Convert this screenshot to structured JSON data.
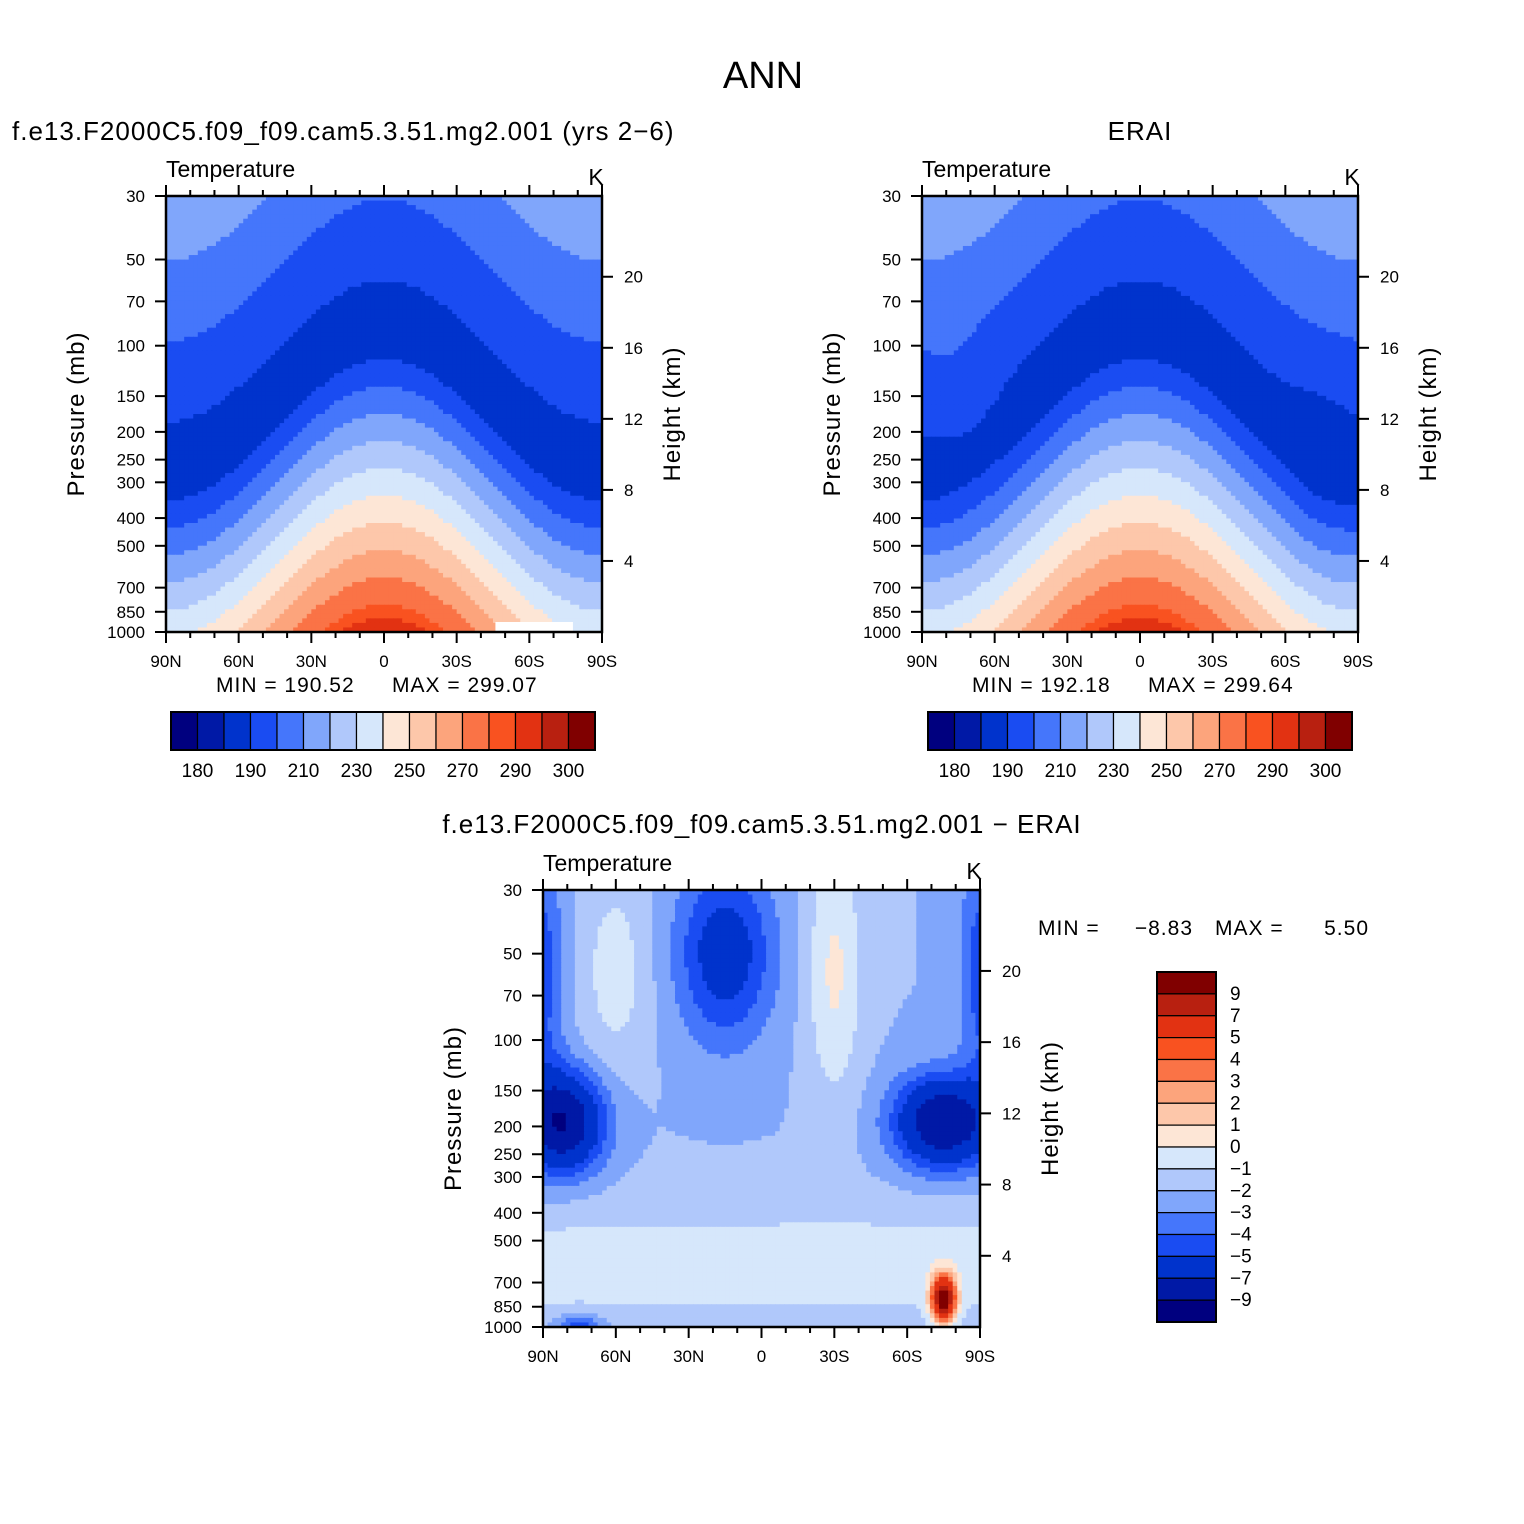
{
  "figure": {
    "title": "ANN",
    "colors": {
      "abs_levels": [
        "#00007f",
        "#0019a6",
        "#0033cc",
        "#1a4cf2",
        "#4576fb",
        "#80a6fb",
        "#b0c8fb",
        "#d6e7fb",
        "#fde6d6",
        "#fdc7aa",
        "#fca47c",
        "#fa7346",
        "#f95220",
        "#e23212",
        "#b82010",
        "#800000"
      ],
      "diff_levels": [
        "#00007f",
        "#0019a6",
        "#0033cc",
        "#1a4cf2",
        "#4576fb",
        "#80a6fb",
        "#b0c8fb",
        "#d6e7fb",
        "#fde6d6",
        "#fdc7aa",
        "#fca47c",
        "#fa7346",
        "#f95220",
        "#e23212",
        "#b82010",
        "#800000"
      ]
    }
  },
  "chart_data": [
    {
      "type": "heatmap",
      "panel": "model",
      "title": "f.e13.F2000C5.f09_f09.cam5.3.51.mg2.001 (yrs 2−6)",
      "variable": "Temperature",
      "units": "K",
      "xlabel": "",
      "ylabel": "Pressure (mb)",
      "ylabel_right": "Height (km)",
      "x_ticks": [
        "90N",
        "60N",
        "30N",
        "0",
        "30S",
        "60S",
        "90S"
      ],
      "y_ticks": [
        "30",
        "50",
        "70",
        "100",
        "150",
        "200",
        "250",
        "300",
        "400",
        "500",
        "700",
        "850",
        "1000"
      ],
      "y_ticks_right": [
        "20",
        "16",
        "12",
        "8",
        "4"
      ],
      "min_label": "MIN = 190.52",
      "max_label": "MAX = 299.07",
      "min": 190.52,
      "max": 299.07,
      "colorbar_labels": [
        "180",
        "190",
        "210",
        "230",
        "250",
        "270",
        "290",
        "300"
      ]
    },
    {
      "type": "heatmap",
      "panel": "obs",
      "title": "ERAI",
      "variable": "Temperature",
      "units": "K",
      "xlabel": "",
      "ylabel": "Pressure (mb)",
      "ylabel_right": "Height (km)",
      "x_ticks": [
        "90N",
        "60N",
        "30N",
        "0",
        "30S",
        "60S",
        "90S"
      ],
      "y_ticks": [
        "30",
        "50",
        "70",
        "100",
        "150",
        "200",
        "250",
        "300",
        "400",
        "500",
        "700",
        "850",
        "1000"
      ],
      "y_ticks_right": [
        "20",
        "16",
        "12",
        "8",
        "4"
      ],
      "min_label": "MIN = 192.18",
      "max_label": "MAX = 299.64",
      "min": 192.18,
      "max": 299.64,
      "colorbar_labels": [
        "180",
        "190",
        "210",
        "230",
        "250",
        "270",
        "290",
        "300"
      ]
    },
    {
      "type": "heatmap",
      "panel": "diff",
      "title": "f.e13.F2000C5.f09_f09.cam5.3.51.mg2.001 − ERAI",
      "variable": "Temperature",
      "units": "K",
      "xlabel": "",
      "ylabel": "Pressure (mb)",
      "ylabel_right": "Height (km)",
      "x_ticks": [
        "90N",
        "60N",
        "30N",
        "0",
        "30S",
        "60S",
        "90S"
      ],
      "y_ticks": [
        "30",
        "50",
        "70",
        "100",
        "150",
        "200",
        "250",
        "300",
        "400",
        "500",
        "700",
        "850",
        "1000"
      ],
      "y_ticks_right": [
        "20",
        "16",
        "12",
        "8",
        "4"
      ],
      "min_label": "MIN =",
      "min_value": "−8.83",
      "max_label": "MAX =",
      "max_value": "5.50",
      "min": -8.83,
      "max": 5.5,
      "colorbar_labels": [
        "9",
        "7",
        "5",
        "4",
        "3",
        "2",
        "1",
        "0",
        "−1",
        "−2",
        "−3",
        "−4",
        "−5",
        "−7",
        "−9"
      ]
    }
  ]
}
